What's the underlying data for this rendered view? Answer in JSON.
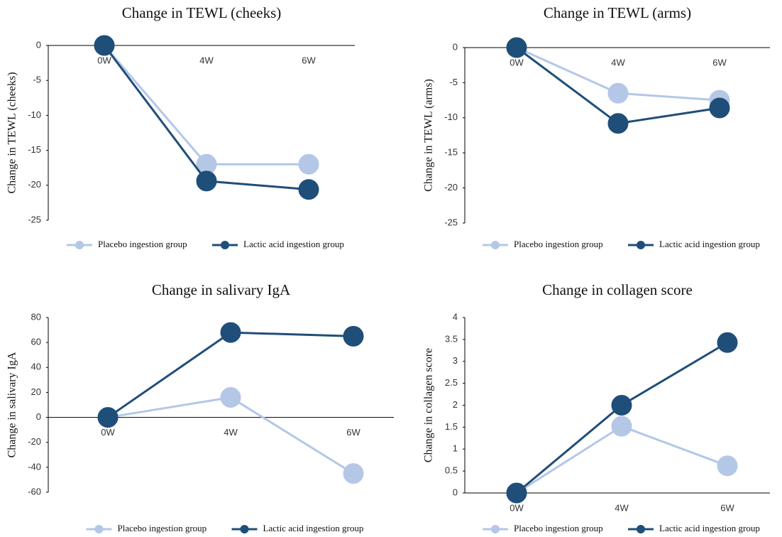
{
  "chart_data": [
    {
      "type": "line",
      "title": "Change in TEWL (cheeks)",
      "y_label": "Change in TEWL (cheeks)",
      "categories": [
        "0W",
        "4W",
        "6W"
      ],
      "ylim": [
        -25,
        0
      ],
      "yticks": [
        0,
        -5,
        -10,
        -15,
        -20,
        -25
      ],
      "series": [
        {
          "name": "Placebo ingestion group",
          "color": "#b4c7e7",
          "values": [
            0,
            -17,
            -17
          ]
        },
        {
          "name": "Lactic acid ingestion group",
          "color": "#1f4e79",
          "values": [
            0,
            -19.4,
            -20.6
          ]
        }
      ]
    },
    {
      "type": "line",
      "title": "Change in TEWL (arms)",
      "y_label": "Change in TEWL (arms)",
      "categories": [
        "0W",
        "4W",
        "6W"
      ],
      "ylim": [
        -25,
        0
      ],
      "yticks": [
        0,
        -5,
        -10,
        -15,
        -20,
        -25
      ],
      "series": [
        {
          "name": "Placebo ingestion group",
          "color": "#b4c7e7",
          "values": [
            0,
            -6.5,
            -7.5
          ]
        },
        {
          "name": "Lactic acid ingestion group",
          "color": "#1f4e79",
          "values": [
            0,
            -10.8,
            -8.6
          ]
        }
      ]
    },
    {
      "type": "line",
      "title": "Change in salivary IgA",
      "y_label": "Change in salivary IgA",
      "categories": [
        "0W",
        "4W",
        "6W"
      ],
      "ylim": [
        -60,
        80
      ],
      "yticks": [
        80,
        60,
        40,
        20,
        0,
        -20,
        -40,
        -60
      ],
      "series": [
        {
          "name": "Placebo ingestion group",
          "color": "#b4c7e7",
          "values": [
            0,
            16,
            -45
          ]
        },
        {
          "name": "Lactic acid ingestion group",
          "color": "#1f4e79",
          "values": [
            0,
            68,
            65
          ]
        }
      ]
    },
    {
      "type": "line",
      "title": "Change in collagen score",
      "y_label": "Change in collagen score",
      "categories": [
        "0W",
        "4W",
        "6W"
      ],
      "ylim": [
        0,
        4
      ],
      "yticks": [
        0,
        0.5,
        1,
        1.5,
        2,
        2.5,
        3,
        3.5,
        4
      ],
      "series": [
        {
          "name": "Placebo ingestion group",
          "color": "#b4c7e7",
          "values": [
            0,
            1.52,
            0.62
          ]
        },
        {
          "name": "Lactic acid ingestion group",
          "color": "#1f4e79",
          "values": [
            0,
            2.0,
            3.43
          ]
        }
      ]
    }
  ]
}
